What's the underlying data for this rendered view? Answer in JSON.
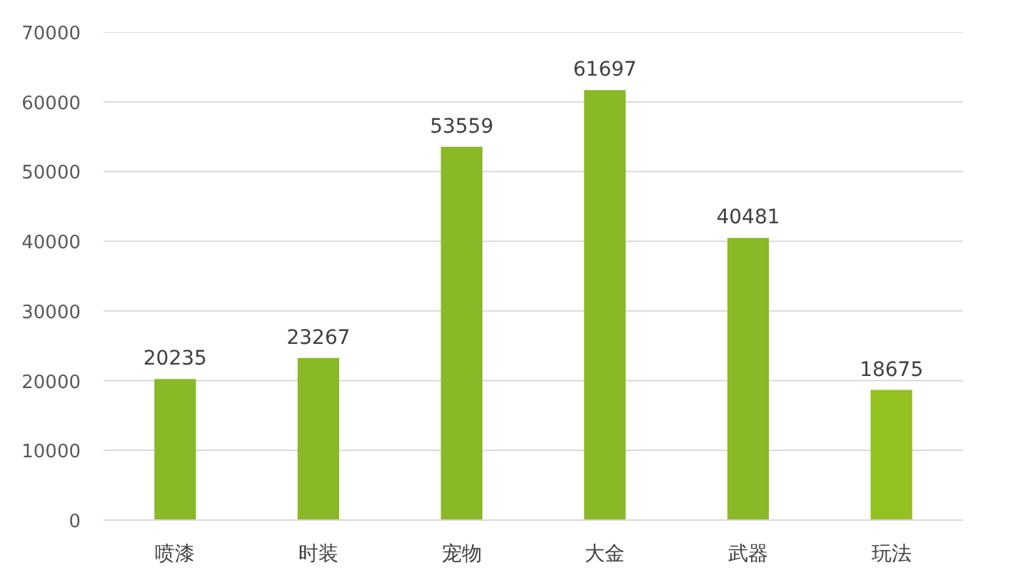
{
  "chart_data": {
    "type": "bar",
    "categories": [
      "喷漆",
      "时装",
      "宠物",
      "大金",
      "武器",
      "玩法"
    ],
    "values": [
      20235,
      23267,
      53559,
      61697,
      40481,
      18675
    ],
    "colors": [
      "#89b926",
      "#89b926",
      "#89b926",
      "#89b926",
      "#89b926",
      "#93c11f"
    ],
    "ylim": [
      0,
      70000
    ],
    "yticks": [
      0,
      10000,
      20000,
      30000,
      40000,
      50000,
      60000,
      70000
    ],
    "grid": "y",
    "data_labels": true
  }
}
